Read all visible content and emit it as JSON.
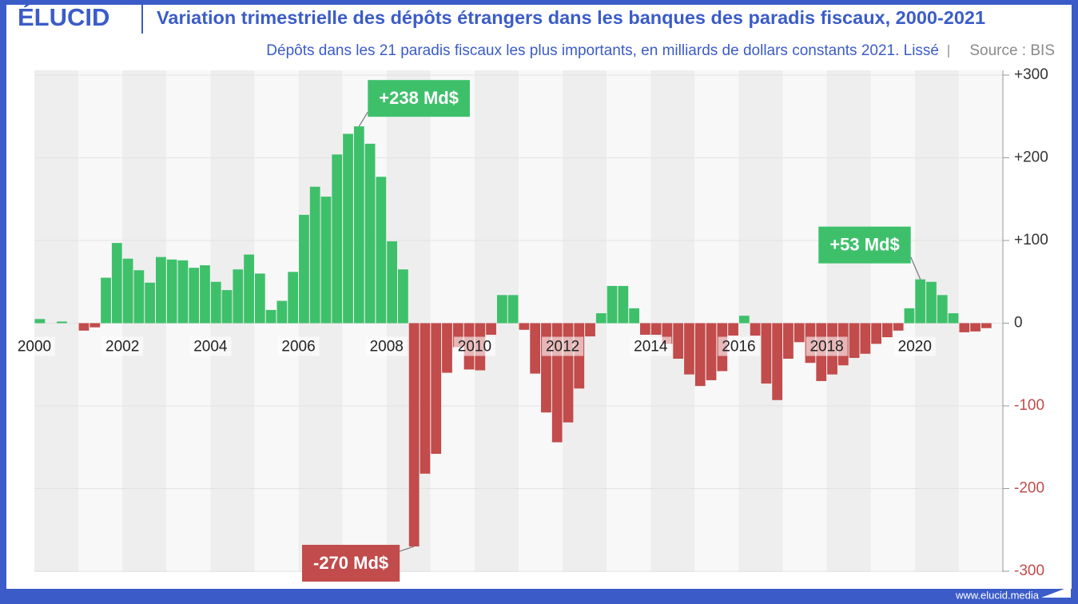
{
  "chart_data": {
    "type": "bar",
    "logo": "ÉLUCID",
    "title": "Variation trimestrielle des dépôts étrangers dans les banques des paradis fiscaux, 2000-2021",
    "subtitle": "Dépôts dans les 21 paradis fiscaux les plus importants, en milliards de dollars constants 2021. Lissé",
    "source": "Source : BIS",
    "website": "www.elucid.media",
    "x": [
      2000,
      2000.25,
      2000.5,
      2000.75,
      2001,
      2001.25,
      2001.5,
      2001.75,
      2002,
      2002.25,
      2002.5,
      2002.75,
      2003,
      2003.25,
      2003.5,
      2003.75,
      2004,
      2004.25,
      2004.5,
      2004.75,
      2005,
      2005.25,
      2005.5,
      2005.75,
      2006,
      2006.25,
      2006.5,
      2006.75,
      2007,
      2007.25,
      2007.5,
      2007.75,
      2008,
      2008.25,
      2008.5,
      2008.75,
      2009,
      2009.25,
      2009.5,
      2009.75,
      2010,
      2010.25,
      2010.5,
      2010.75,
      2011,
      2011.25,
      2011.5,
      2011.75,
      2012,
      2012.25,
      2012.5,
      2012.75,
      2013,
      2013.25,
      2013.5,
      2013.75,
      2014,
      2014.25,
      2014.5,
      2014.75,
      2015,
      2015.25,
      2015.5,
      2015.75,
      2016,
      2016.25,
      2016.5,
      2016.75,
      2017,
      2017.25,
      2017.5,
      2017.75,
      2018,
      2018.25,
      2018.5,
      2018.75,
      2019,
      2019.25,
      2019.5,
      2019.75,
      2020,
      2020.25,
      2020.5,
      2020.75,
      2021,
      2021.25,
      2021.5
    ],
    "values": [
      5,
      0,
      2,
      0,
      -9,
      -5,
      55,
      97,
      78,
      64,
      49,
      80,
      77,
      76,
      67,
      70,
      50,
      40,
      65,
      83,
      60,
      16,
      27,
      62,
      131,
      165,
      153,
      204,
      229,
      238,
      217,
      177,
      99,
      65,
      -270,
      -182,
      -158,
      -60,
      -29,
      -56,
      -57,
      -14,
      34,
      34,
      -8,
      -61,
      -108,
      -144,
      -120,
      -79,
      -16,
      12,
      45,
      45,
      18,
      -14,
      -14,
      -25,
      -43,
      -62,
      -76,
      -69,
      -58,
      -15,
      9,
      -15,
      -73,
      -93,
      -43,
      -23,
      -48,
      -70,
      -62,
      -51,
      -42,
      -37,
      -25,
      -17,
      -9,
      18,
      53,
      50,
      34,
      12,
      -11,
      -10,
      -6
    ],
    "colors": {
      "positive": "#3ec06b",
      "negative": "#c24b4b"
    },
    "xlim": [
      2000,
      2022
    ],
    "xticks": [
      2000,
      2002,
      2004,
      2006,
      2008,
      2010,
      2012,
      2014,
      2016,
      2018,
      2020
    ],
    "ylim": [
      -300,
      300
    ],
    "yticks": [
      {
        "value": 300,
        "label": "+300"
      },
      {
        "value": 200,
        "label": "+200"
      },
      {
        "value": 100,
        "label": "+100"
      },
      0,
      -100,
      -200,
      -300
    ],
    "grid": true,
    "annotations": [
      {
        "text": "+238 Md$",
        "x": 2007.25,
        "value": 238
      },
      {
        "text": "-270 Md$",
        "x": 2008.5,
        "value": -270
      },
      {
        "text": "+53 Md$",
        "x": 2020,
        "value": 53
      }
    ]
  }
}
